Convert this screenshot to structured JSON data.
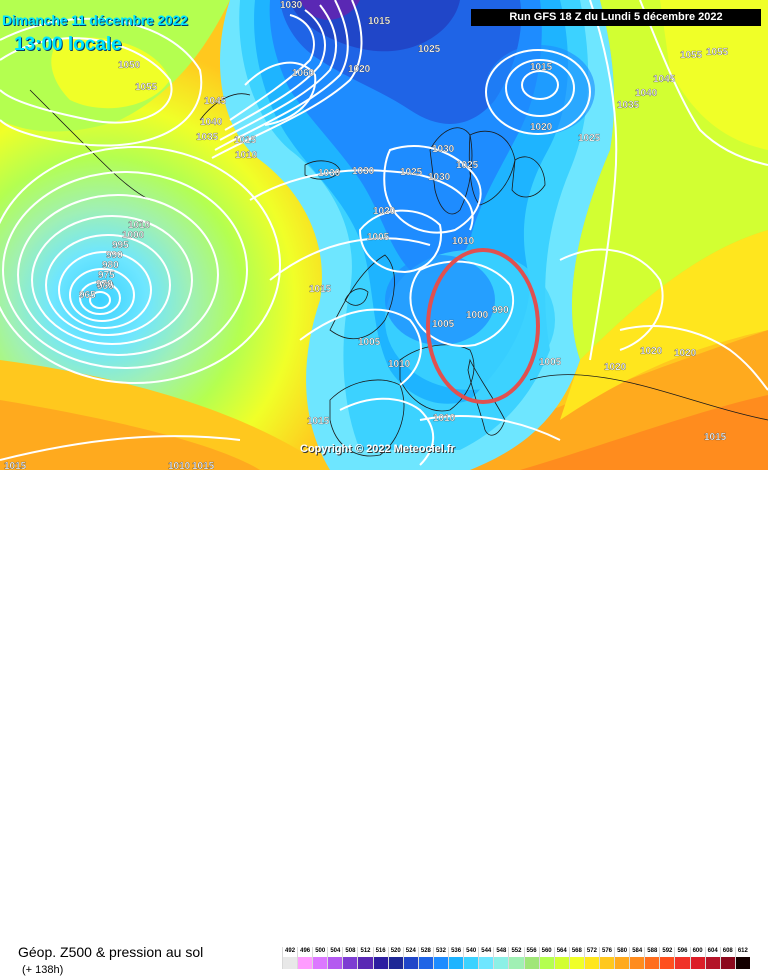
{
  "header": {
    "date_label": "Dimanche 11 décembre 2022",
    "time_label": "13:00 locale",
    "run_label": "Run GFS 18 Z du Lundi 5 décembre 2022"
  },
  "map": {
    "copyright": "Copyright © 2022 Meteociel.fr",
    "pressure_labels": [
      {
        "text": "1030",
        "cls": "isobar-label"
      },
      {
        "text": "1015",
        "cls": "isobar-label"
      },
      {
        "text": "1020",
        "cls": "isobar-label"
      },
      {
        "text": "1025",
        "cls": "isobar-label"
      },
      {
        "text": "1050",
        "cls": "isobar-label"
      },
      {
        "text": "1055",
        "cls": "isobar-label"
      },
      {
        "text": "1045",
        "cls": "isobar-label"
      },
      {
        "text": "1040",
        "cls": "isobar-label"
      },
      {
        "text": "1035",
        "cls": "isobar-label"
      },
      {
        "text": "1010",
        "cls": "isobar-label"
      },
      {
        "text": "1005",
        "cls": "isobar-label"
      },
      {
        "text": "1000",
        "cls": "isobar-label"
      },
      {
        "text": "990",
        "cls": "isobar-label"
      },
      {
        "text": "965",
        "cls": "isobar-label"
      },
      {
        "text": "960",
        "cls": "isobar-label"
      },
      {
        "text": "1060",
        "cls": "isobar-label"
      },
      {
        "text": "1055",
        "cls": "isobar-label"
      }
    ],
    "low_markers": [
      "965",
      "960",
      "975",
      "990"
    ]
  },
  "legend": {
    "title": "Géop. Z500 & pression au sol",
    "subtitle": "(+ 138h)",
    "scale_values": [
      "492",
      "496",
      "500",
      "504",
      "508",
      "512",
      "516",
      "520",
      "524",
      "528",
      "532",
      "536",
      "540",
      "544",
      "548",
      "552",
      "556",
      "560",
      "564",
      "568",
      "572",
      "576",
      "580",
      "584",
      "588",
      "592",
      "596",
      "600",
      "604",
      "608",
      "612"
    ],
    "scale_colors": [
      "#e8e8e8",
      "#ff9cff",
      "#dc78ff",
      "#b45af0",
      "#7d3cd2",
      "#5a28b4",
      "#2d1ea0",
      "#1e2896",
      "#2046c8",
      "#1f64e6",
      "#1e8cff",
      "#1eb4ff",
      "#3cd2ff",
      "#6ee6ff",
      "#8cf0e6",
      "#a0f0b4",
      "#a0e678",
      "#b4ff50",
      "#d2ff32",
      "#f0ff28",
      "#ffe61e",
      "#ffc81e",
      "#ffaa1e",
      "#ff8c1e",
      "#ff6e1e",
      "#ff501e",
      "#f03228",
      "#dc1e28",
      "#b41428",
      "#8c0a1e",
      "#140000"
    ]
  }
}
